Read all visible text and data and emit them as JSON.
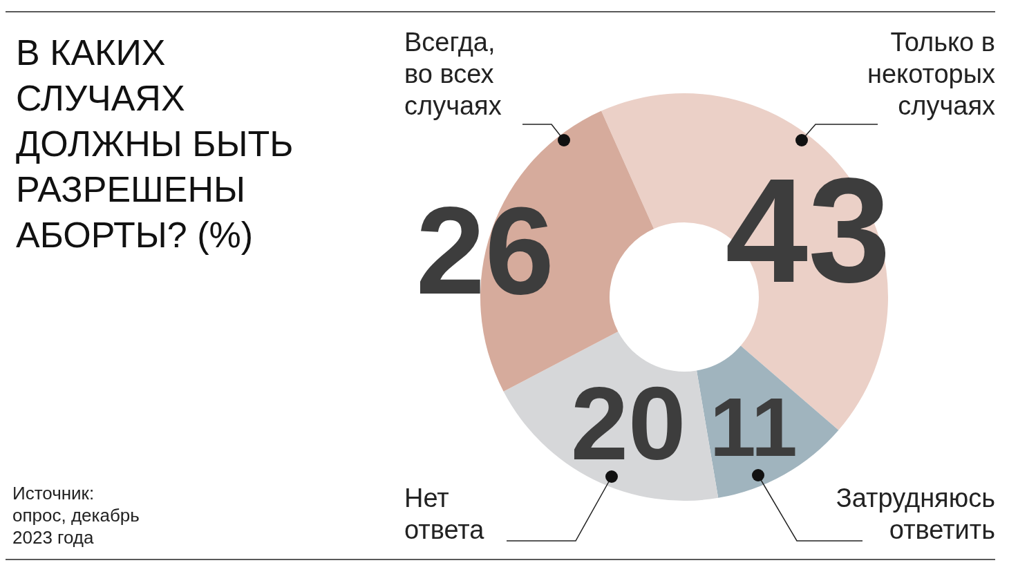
{
  "chart_data": {
    "type": "donut",
    "title": "В КАКИХ СЛУЧАЯХ ДОЛЖНЫ БЫТЬ РАЗРЕШЕНЫ АБОРТЫ? (%)",
    "categories": [
      "Только в некоторых случаях",
      "Затрудняюсь ответить",
      "Нет ответа",
      "Всегда, во всех случаях"
    ],
    "values": [
      43,
      11,
      20,
      26
    ],
    "colors": [
      "#ebd0c7",
      "#a0b4be",
      "#d6d7d9",
      "#d6ab9c"
    ],
    "data_labels": true,
    "legend": false,
    "annotations": [
      "Источник: опрос, декабрь 2023 года"
    ]
  }
}
